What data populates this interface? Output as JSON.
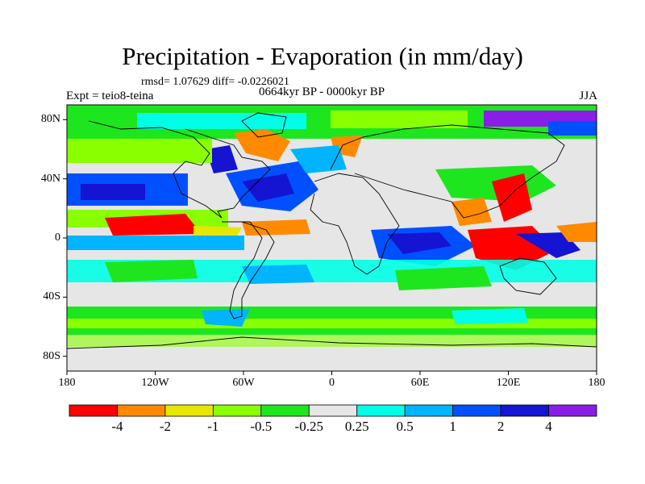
{
  "title": "Precipitation - Evaporation (in mm/day)",
  "stats_line": "rmsd= 1.07629 diff= -0.0226021",
  "period": "0664kyr BP - 0000kyr BP",
  "experiment": "Expt = teio8-teina",
  "season": "JJA",
  "lat_ticks": [
    {
      "value": 80,
      "label": "80N"
    },
    {
      "value": 40,
      "label": "40N"
    },
    {
      "value": 0,
      "label": "0"
    },
    {
      "value": -40,
      "label": "40S"
    },
    {
      "value": -80,
      "label": "80S"
    }
  ],
  "lon_ticks": [
    {
      "value": -180,
      "label": "180"
    },
    {
      "value": -120,
      "label": "120W"
    },
    {
      "value": -60,
      "label": "60W"
    },
    {
      "value": 0,
      "label": "0"
    },
    {
      "value": 60,
      "label": "60E"
    },
    {
      "value": 120,
      "label": "120E"
    },
    {
      "value": 180,
      "label": "180"
    }
  ],
  "colorbar": {
    "colors": [
      "#ff0000",
      "#ff8a00",
      "#e6e600",
      "#8aff00",
      "#1ee61e",
      "#e6e6e6",
      "#00ffe6",
      "#00b4ff",
      "#0050ff",
      "#1414d2",
      "#8a1ee6"
    ],
    "labels": [
      "-4",
      "-2",
      "-1",
      "-0.5",
      "-0.25",
      "0.25",
      "0.5",
      "1",
      "2",
      "4"
    ]
  }
}
